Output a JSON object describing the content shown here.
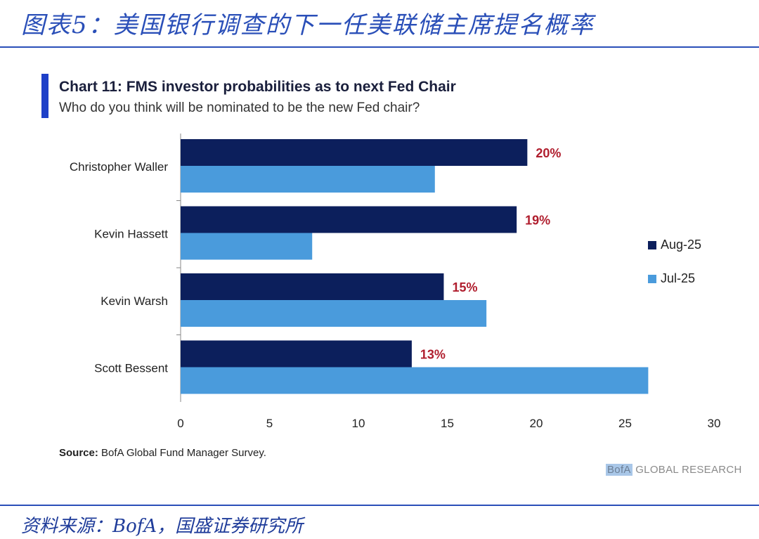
{
  "figure": {
    "title": "图表5：美国银行调查的下一任美联储主席提名概率",
    "source_note": "资料来源：BofA，国盛证券研究所"
  },
  "chart_data": {
    "type": "bar",
    "orientation": "horizontal",
    "title": "Chart 11: FMS investor probabilities as to next Fed Chair",
    "subtitle": "Who do you think will be nominated to be the new Fed chair?",
    "categories": [
      "Christopher Waller",
      "Kevin Hassett",
      "Kevin Warsh",
      "Scott Bessent"
    ],
    "series": [
      {
        "name": "Aug-25",
        "color": "#0c1f5c",
        "values": [
          19.5,
          18.9,
          14.8,
          13.0
        ],
        "labels": [
          "20%",
          "19%",
          "15%",
          "13%"
        ]
      },
      {
        "name": "Jul-25",
        "color": "#4a9bdc",
        "values": [
          14.3,
          7.4,
          17.2,
          26.3
        ]
      }
    ],
    "xlim": [
      0,
      30
    ],
    "xticks": [
      "0",
      "5",
      "10",
      "15",
      "20",
      "25",
      "30"
    ],
    "xlabel": "",
    "ylabel": "",
    "legend_position": "right",
    "grid": false
  },
  "source": {
    "label": "Source:",
    "text": "BofA Global Fund Manager Survey."
  },
  "brand": {
    "highlight": "BofA",
    "rest": "GLOBAL RESEARCH"
  }
}
